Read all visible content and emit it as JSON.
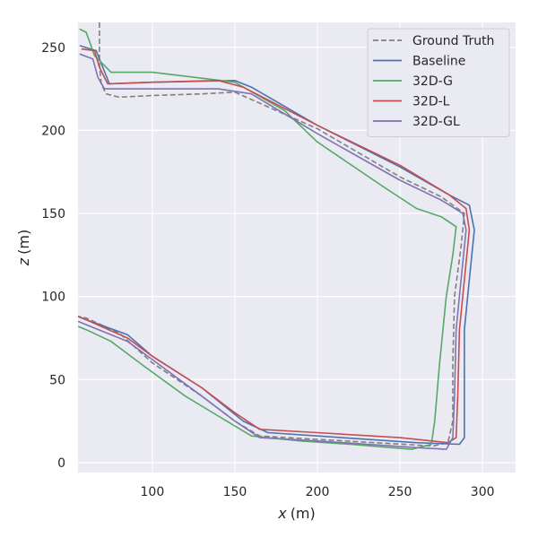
{
  "chart_data": {
    "type": "line",
    "xlabel_var": "x",
    "xlabel_unit": "(m)",
    "ylabel_var": "z",
    "ylabel_unit": "(m)",
    "xlim": [
      55,
      320
    ],
    "ylim": [
      -6,
      265
    ],
    "xticks": [
      100,
      150,
      200,
      250,
      300
    ],
    "yticks": [
      0,
      50,
      100,
      150,
      200,
      250
    ],
    "grid": true,
    "legend_position": "top-right",
    "colors": {
      "background": "#EAEAF2",
      "grid": "#FFFFFF",
      "ground_truth": "#808080",
      "baseline": "#4C72B0",
      "g": "#55A868",
      "l": "#C44E52",
      "gl": "#8172B2"
    },
    "series": [
      {
        "name": "Ground Truth",
        "style": "dashed",
        "color": "#808080",
        "points": [
          [
            68,
            265
          ],
          [
            68,
            240
          ],
          [
            69,
            228
          ],
          [
            72,
            222
          ],
          [
            80,
            220
          ],
          [
            100,
            221
          ],
          [
            130,
            222
          ],
          [
            150,
            223
          ],
          [
            200,
            201
          ],
          [
            250,
            172
          ],
          [
            275,
            160
          ],
          [
            289,
            150
          ],
          [
            287,
            130
          ],
          [
            283,
            100
          ],
          [
            282,
            60
          ],
          [
            282,
            25
          ],
          [
            279,
            12
          ],
          [
            270,
            10
          ],
          [
            200,
            14
          ],
          [
            165,
            16
          ],
          [
            150,
            25
          ],
          [
            130,
            40
          ],
          [
            100,
            60
          ],
          [
            80,
            78
          ],
          [
            60,
            87
          ],
          [
            55,
            88
          ]
        ]
      },
      {
        "name": "Baseline",
        "style": "solid",
        "color": "#4C72B0",
        "points": [
          [
            56,
            251
          ],
          [
            66,
            248
          ],
          [
            70,
            238
          ],
          [
            74,
            228
          ],
          [
            100,
            229
          ],
          [
            150,
            230
          ],
          [
            160,
            226
          ],
          [
            200,
            203
          ],
          [
            250,
            178
          ],
          [
            280,
            161
          ],
          [
            292,
            155
          ],
          [
            295,
            140
          ],
          [
            292,
            110
          ],
          [
            289,
            80
          ],
          [
            289,
            40
          ],
          [
            289,
            15
          ],
          [
            286,
            11
          ],
          [
            260,
            12
          ],
          [
            200,
            16
          ],
          [
            170,
            18
          ],
          [
            155,
            25
          ],
          [
            130,
            45
          ],
          [
            100,
            64
          ],
          [
            85,
            77
          ],
          [
            60,
            86
          ],
          [
            55,
            88
          ]
        ]
      },
      {
        "name": "32D-G",
        "style": "solid",
        "color": "#55A868",
        "points": [
          [
            56,
            261
          ],
          [
            60,
            259
          ],
          [
            65,
            245
          ],
          [
            75,
            235
          ],
          [
            100,
            235
          ],
          [
            150,
            229
          ],
          [
            180,
            212
          ],
          [
            200,
            193
          ],
          [
            240,
            166
          ],
          [
            260,
            153
          ],
          [
            275,
            148
          ],
          [
            284,
            142
          ],
          [
            282,
            125
          ],
          [
            278,
            100
          ],
          [
            274,
            60
          ],
          [
            271,
            25
          ],
          [
            269,
            11
          ],
          [
            257,
            8
          ],
          [
            220,
            11
          ],
          [
            190,
            13
          ],
          [
            160,
            16
          ],
          [
            140,
            28
          ],
          [
            120,
            40
          ],
          [
            95,
            58
          ],
          [
            75,
            73
          ],
          [
            60,
            80
          ],
          [
            55,
            82
          ]
        ]
      },
      {
        "name": "32D-L",
        "style": "solid",
        "color": "#C44E52",
        "points": [
          [
            57,
            249
          ],
          [
            65,
            248
          ],
          [
            68,
            238
          ],
          [
            73,
            228
          ],
          [
            100,
            229
          ],
          [
            140,
            230
          ],
          [
            155,
            226
          ],
          [
            200,
            203
          ],
          [
            250,
            179
          ],
          [
            280,
            161
          ],
          [
            290,
            153
          ],
          [
            292,
            140
          ],
          [
            289,
            110
          ],
          [
            286,
            80
          ],
          [
            285,
            40
          ],
          [
            284,
            15
          ],
          [
            279,
            12
          ],
          [
            250,
            15
          ],
          [
            200,
            18
          ],
          [
            165,
            20
          ],
          [
            150,
            30
          ],
          [
            130,
            45
          ],
          [
            100,
            64
          ],
          [
            85,
            75
          ],
          [
            60,
            86
          ],
          [
            55,
            88
          ]
        ]
      },
      {
        "name": "32D-GL",
        "style": "solid",
        "color": "#8172B2",
        "points": [
          [
            56,
            246
          ],
          [
            64,
            243
          ],
          [
            67,
            232
          ],
          [
            71,
            225
          ],
          [
            100,
            225
          ],
          [
            140,
            225
          ],
          [
            160,
            222
          ],
          [
            200,
            198
          ],
          [
            250,
            170
          ],
          [
            275,
            158
          ],
          [
            288,
            150
          ],
          [
            290,
            140
          ],
          [
            287,
            110
          ],
          [
            284,
            80
          ],
          [
            283,
            40
          ],
          [
            282,
            15
          ],
          [
            278,
            8
          ],
          [
            260,
            9
          ],
          [
            200,
            13
          ],
          [
            165,
            15
          ],
          [
            150,
            25
          ],
          [
            130,
            40
          ],
          [
            100,
            62
          ],
          [
            85,
            73
          ],
          [
            60,
            83
          ],
          [
            55,
            85
          ]
        ]
      }
    ]
  }
}
